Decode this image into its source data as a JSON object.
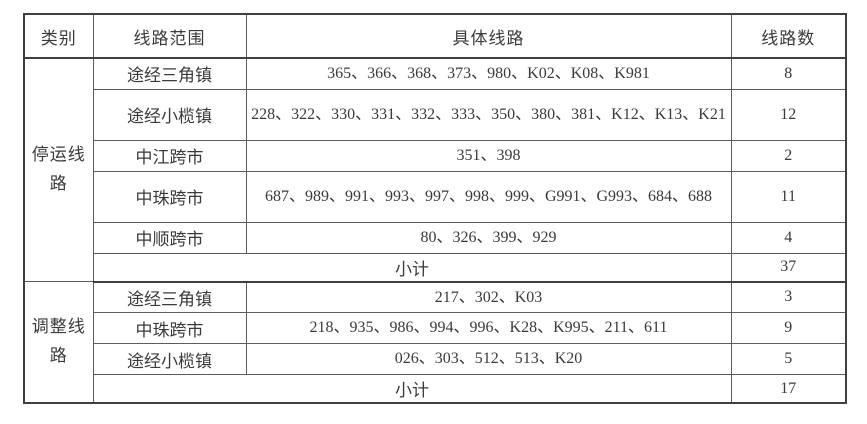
{
  "table": {
    "headers": [
      "类别",
      "线路范围",
      "具体线路",
      "线路数"
    ],
    "sections": [
      {
        "category": "停运线路",
        "rows": [
          {
            "scope": "途经三角镇",
            "routes": "365、366、368、373、980、K02、K08、K981",
            "count": "8"
          },
          {
            "scope": "途经小榄镇",
            "routes": "228、322、330、331、332、333、350、380、381、K12、K13、K21",
            "count": "12"
          },
          {
            "scope": "中江跨市",
            "routes": "351、398",
            "count": "2"
          },
          {
            "scope": "中珠跨市",
            "routes": "687、989、991、993、997、998、999、G991、G993、684、688",
            "count": "11"
          },
          {
            "scope": "中顺跨市",
            "routes": "80、326、399、929",
            "count": "4"
          }
        ],
        "subtotal_label": "小计",
        "subtotal_count": "37"
      },
      {
        "category": "调整线路",
        "rows": [
          {
            "scope": "途经三角镇",
            "routes": "217、302、K03",
            "count": "3"
          },
          {
            "scope": "中珠跨市",
            "routes": "218、935、986、994、996、K28、K995、211、611",
            "count": "9"
          },
          {
            "scope": "途经小榄镇",
            "routes": "026、303、512、513、K20",
            "count": "5"
          }
        ],
        "subtotal_label": "小计",
        "subtotal_count": "17"
      }
    ]
  },
  "colors": {
    "background": "#ffffff",
    "text": "#3a3a3a",
    "border_thin": "#5c5c5c",
    "border_thick": "#3f3f3f"
  }
}
